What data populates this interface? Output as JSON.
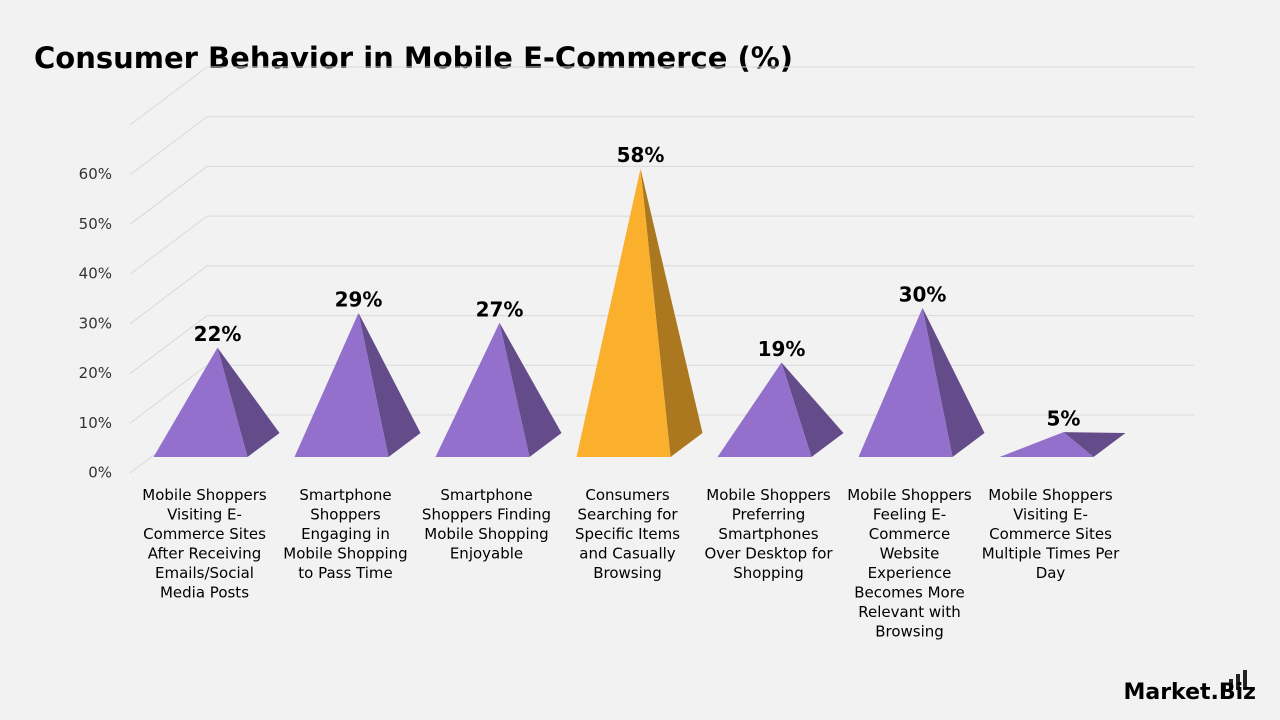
{
  "chart_data": {
    "type": "pyramid",
    "title": "Consumer Behavior in Mobile E-Commerce (%)",
    "categories": [
      "Mobile Shoppers Visiting E-Commerce Sites After Receiving Emails/Social Media Posts",
      "Smartphone Shoppers Engaging in Mobile Shopping to Pass Time",
      "Smartphone Shoppers Finding Mobile Shopping Enjoyable",
      "Consumers Searching for Specific Items and Casually Browsing",
      "Mobile Shoppers Preferring Smartphones Over Desktop for Shopping",
      "Mobile Shoppers Feeling E-Commerce Website Experience Becomes More Relevant with Browsing",
      "Mobile Shoppers Visiting E-Commerce Sites Multiple Times Per Day"
    ],
    "values": [
      22,
      29,
      27,
      58,
      19,
      30,
      5
    ],
    "value_labels": [
      "22%",
      "29%",
      "27%",
      "58%",
      "19%",
      "30%",
      "5%"
    ],
    "colors": [
      "#9370cc",
      "#9370cc",
      "#9370cc",
      "#fbb02d",
      "#9370cc",
      "#9370cc",
      "#9370cc"
    ],
    "ylim": [
      0,
      70
    ],
    "yticks": [
      {
        "value": 0,
        "label": "0%"
      },
      {
        "value": 10,
        "label": "10%"
      },
      {
        "value": 20,
        "label": "20%"
      },
      {
        "value": 30,
        "label": "30%"
      },
      {
        "value": 40,
        "label": "40%"
      },
      {
        "value": 50,
        "label": "50%"
      },
      {
        "value": 60,
        "label": "60%"
      }
    ],
    "grid": true
  },
  "logo": "Market.Biz"
}
